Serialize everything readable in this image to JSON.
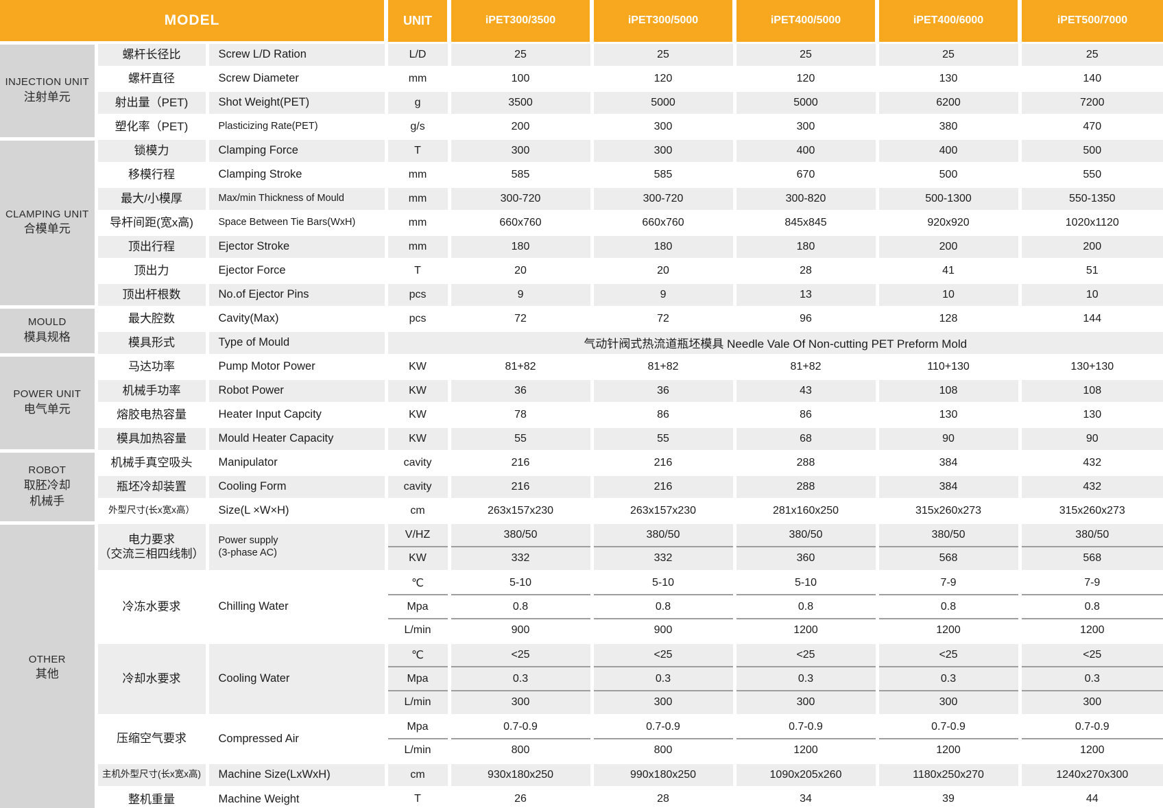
{
  "colors": {
    "accent_orange": "#F8A81E",
    "group_column_gray": "#D5D5D5",
    "row_shade_gray": "#EDEDED",
    "subrow_divider_gray": "#9E9E9E",
    "header_text": "#FFFFFF"
  },
  "header": {
    "model": "MODEL",
    "unit": "UNIT",
    "models": [
      "iPET300/3500",
      "iPET300/5000",
      "iPET400/5000",
      "iPET400/6000",
      "iPET500/7000"
    ]
  },
  "groups": [
    {
      "id": "injection",
      "en": "INJECTION UNIT",
      "cn": "注射单元"
    },
    {
      "id": "clamping",
      "en": "CLAMPING UNIT",
      "cn": "合模单元"
    },
    {
      "id": "mould",
      "en": "MOULD",
      "cn": "模具规格"
    },
    {
      "id": "power",
      "en": "POWER UNIT",
      "cn": "电气单元"
    },
    {
      "id": "robot",
      "en": "ROBOT",
      "cn": "取胚冷却\n机械手"
    },
    {
      "id": "other",
      "en": "OTHER",
      "cn": "其他"
    }
  ],
  "rows": [
    {
      "group": "injection",
      "cn": "螺杆长径比",
      "en": "Screw L/D Ration",
      "unit": "L/D",
      "values": [
        "25",
        "25",
        "25",
        "25",
        "25"
      ]
    },
    {
      "group": "injection",
      "cn": "螺杆直径",
      "en": "Screw Diameter",
      "unit": "mm",
      "values": [
        "100",
        "120",
        "120",
        "130",
        "140"
      ]
    },
    {
      "group": "injection",
      "cn": "射出量（PET)",
      "en": "Shot Weight(PET)",
      "unit": "g",
      "values": [
        "3500",
        "5000",
        "5000",
        "6200",
        "7200"
      ]
    },
    {
      "group": "injection",
      "cn": "塑化率（PET)",
      "en": "Plasticizing Rate(PET)",
      "unit": "g/s",
      "values": [
        "200",
        "300",
        "300",
        "380",
        "470"
      ]
    },
    {
      "group": "clamping",
      "cn": "锁模力",
      "en": "Clamping Force",
      "unit": "T",
      "values": [
        "300",
        "300",
        "400",
        "400",
        "500"
      ]
    },
    {
      "group": "clamping",
      "cn": "移模行程",
      "en": "Clamping Stroke",
      "unit": "mm",
      "values": [
        "585",
        "585",
        "670",
        "500",
        "550"
      ]
    },
    {
      "group": "clamping",
      "cn": "最大/小模厚",
      "en": "Max/min Thickness of Mould",
      "unit": "mm",
      "values": [
        "300-720",
        "300-720",
        "300-820",
        "500-1300",
        "550-1350"
      ]
    },
    {
      "group": "clamping",
      "cn": "导杆间距(宽x高)",
      "en": "Space Between Tie Bars(WxH)",
      "unit": "mm",
      "values": [
        "660x760",
        "660x760",
        "845x845",
        "920x920",
        "1020x1120"
      ]
    },
    {
      "group": "clamping",
      "cn": "顶出行程",
      "en": "Ejector Stroke",
      "unit": "mm",
      "values": [
        "180",
        "180",
        "180",
        "200",
        "200"
      ]
    },
    {
      "group": "clamping",
      "cn": "顶出力",
      "en": "Ejector Force",
      "unit": "T",
      "values": [
        "20",
        "20",
        "28",
        "41",
        "51"
      ]
    },
    {
      "group": "clamping",
      "cn": "顶出杆根数",
      "en": "No.of Ejector Pins",
      "unit": "pcs",
      "values": [
        "9",
        "9",
        "13",
        "10",
        "10"
      ]
    },
    {
      "group": "mould",
      "cn": "最大腔数",
      "en": "Cavity(Max)",
      "unit": "pcs",
      "values": [
        "72",
        "72",
        "96",
        "128",
        "144"
      ]
    },
    {
      "group": "mould",
      "cn": "模具形式",
      "en": "Type of Mould",
      "span_value": "气动针阀式热流道瓶坯模具   Needle Vale Of Non-cutting PET Preform Mold"
    },
    {
      "group": "power",
      "cn": "马达功率",
      "en": "Pump Motor Power",
      "unit": "KW",
      "values": [
        "81+82",
        "81+82",
        "81+82",
        "110+130",
        "130+130"
      ]
    },
    {
      "group": "power",
      "cn": "机械手功率",
      "en": "Robot Power",
      "unit": "KW",
      "values": [
        "36",
        "36",
        "43",
        "108",
        "108"
      ]
    },
    {
      "group": "power",
      "cn": "熔胶电热容量",
      "en": "Heater Input Capcity",
      "unit": "KW",
      "values": [
        "78",
        "86",
        "86",
        "130",
        "130"
      ]
    },
    {
      "group": "power",
      "cn": "模具加热容量",
      "en": "Mould Heater Capacity",
      "unit": "KW",
      "values": [
        "55",
        "55",
        "68",
        "90",
        "90"
      ]
    },
    {
      "group": "robot",
      "cn": "机械手真空吸头",
      "en": "Manipulator",
      "unit": "cavity",
      "values": [
        "216",
        "216",
        "288",
        "384",
        "432"
      ]
    },
    {
      "group": "robot",
      "cn": "瓶坯冷却装置",
      "en": "Cooling Form",
      "unit": "cavity",
      "values": [
        "216",
        "216",
        "288",
        "384",
        "432"
      ]
    },
    {
      "group": "robot",
      "cn": "外型尺寸(长x宽x高）",
      "en": "Size(L ×W×H)",
      "unit": "cm",
      "values": [
        "263x157x230",
        "263x157x230",
        "281x160x250",
        "315x260x273",
        "315x260x273"
      ]
    },
    {
      "group": "other",
      "cn": "电力要求\n（交流三相四线制）",
      "en": "Power supply\n(3-phase AC)",
      "subs": [
        {
          "unit": "V/HZ",
          "values": [
            "380/50",
            "380/50",
            "380/50",
            "380/50",
            "380/50"
          ]
        },
        {
          "unit": "KW",
          "values": [
            "332",
            "332",
            "360",
            "568",
            "568"
          ]
        }
      ]
    },
    {
      "group": "other",
      "cn": "冷冻水要求",
      "en": "Chilling Water",
      "subs": [
        {
          "unit": "℃",
          "values": [
            "5-10",
            "5-10",
            "5-10",
            "7-9",
            "7-9"
          ]
        },
        {
          "unit": "Mpa",
          "values": [
            "0.8",
            "0.8",
            "0.8",
            "0.8",
            "0.8"
          ]
        },
        {
          "unit": "L/min",
          "values": [
            "900",
            "900",
            "1200",
            "1200",
            "1200"
          ]
        }
      ]
    },
    {
      "group": "other",
      "cn": "冷却水要求",
      "en": "Cooling Water",
      "subs": [
        {
          "unit": "℃",
          "values": [
            "<25",
            "<25",
            "<25",
            "<25",
            "<25"
          ]
        },
        {
          "unit": "Mpa",
          "values": [
            "0.3",
            "0.3",
            "0.3",
            "0.3",
            "0.3"
          ]
        },
        {
          "unit": "L/min",
          "values": [
            "300",
            "300",
            "300",
            "300",
            "300"
          ]
        }
      ]
    },
    {
      "group": "other",
      "cn": "压缩空气要求",
      "en": "Compressed Air",
      "subs": [
        {
          "unit": "Mpa",
          "values": [
            "0.7-0.9",
            "0.7-0.9",
            "0.7-0.9",
            "0.7-0.9",
            "0.7-0.9"
          ]
        },
        {
          "unit": "L/min",
          "values": [
            "800",
            "800",
            "1200",
            "1200",
            "1200"
          ]
        }
      ]
    },
    {
      "group": "other",
      "cn": "主机外型尺寸(长x宽x高)",
      "en": "Machine Size(LxWxH)",
      "unit": "cm",
      "values": [
        "930x180x250",
        "990x180x250",
        "1090x205x260",
        "1180x250x270",
        "1240x270x300"
      ]
    },
    {
      "group": "other",
      "cn": "整机重量",
      "en": "Machine Weight",
      "unit": "T",
      "values": [
        "26",
        "28",
        "34",
        "39",
        "44"
      ]
    }
  ]
}
